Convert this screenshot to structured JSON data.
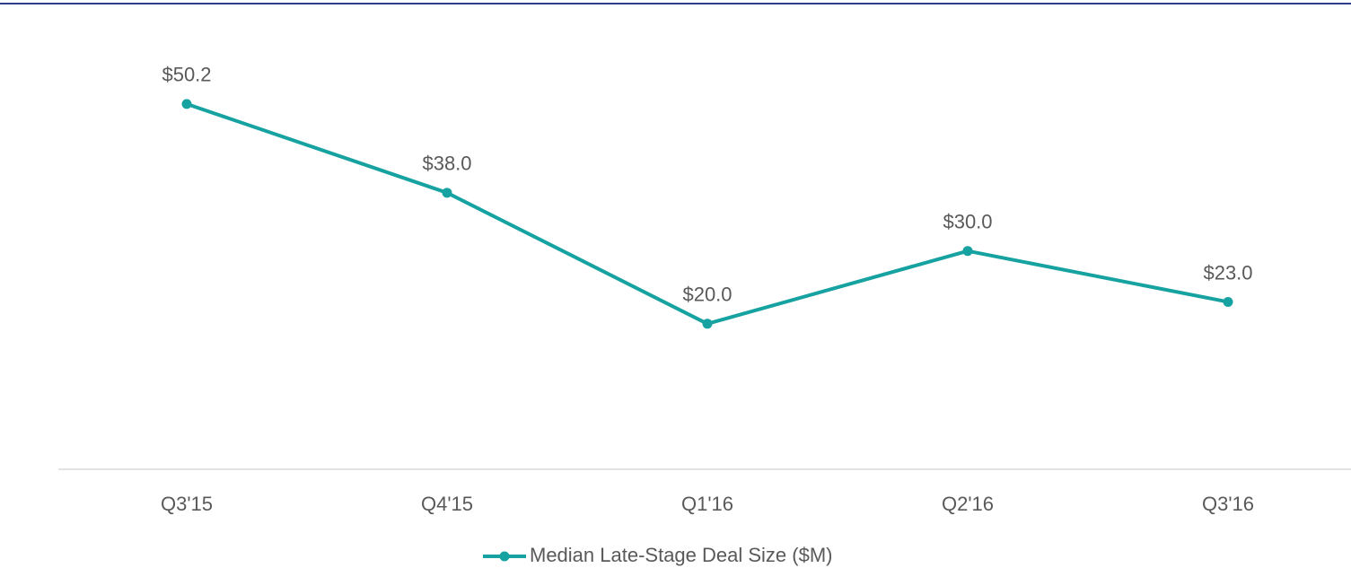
{
  "chart_data": {
    "type": "line",
    "categories": [
      "Q3'15",
      "Q4'15",
      "Q1'16",
      "Q2'16",
      "Q3'16"
    ],
    "series": [
      {
        "name": "Median Late-Stage Deal Size ($M)",
        "color": "#16a2a0",
        "values": [
          50.2,
          38.0,
          20.0,
          30.0,
          23.0
        ],
        "value_labels": [
          "$50.2",
          "$38.0",
          "$20.0",
          "$30.0",
          "$23.0"
        ]
      }
    ]
  }
}
